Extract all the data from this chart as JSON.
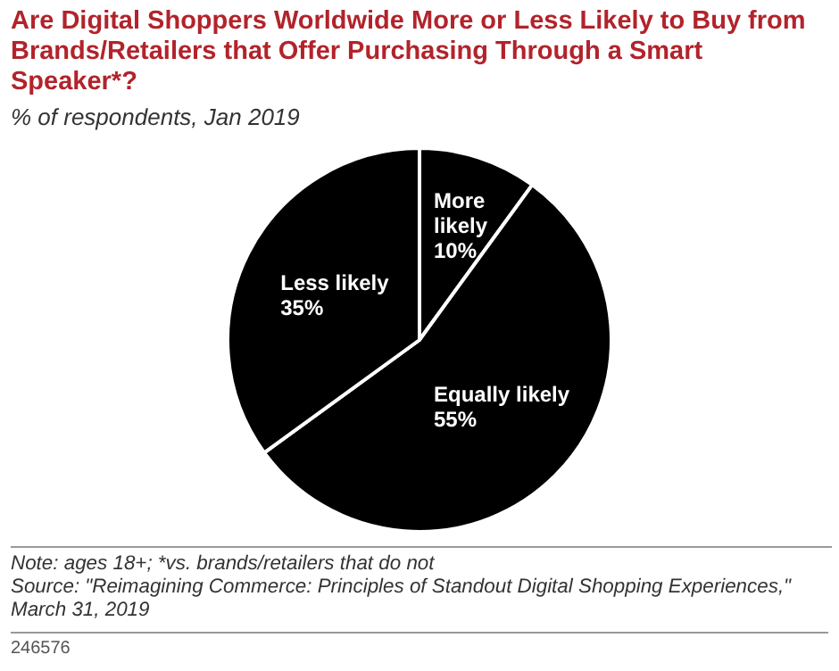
{
  "chart_data": {
    "type": "pie",
    "title": "Are Digital Shoppers Worldwide More or Less Likely to Buy from Brands/Retailers that Offer Purchasing Through a Smart Speaker*?",
    "subtitle": "% of respondents, Jan 2019",
    "categories": [
      "More likely",
      "Equally likely",
      "Less likely"
    ],
    "values": [
      10,
      55,
      35
    ],
    "colors": [
      "#000000",
      "#000000",
      "#000000"
    ],
    "value_labels": [
      "10%",
      "55%",
      "35%"
    ],
    "legend": false,
    "annotations": [
      "Note: ages 18+; *vs. brands/retailers that do not",
      "Source: \"Reimagining Commerce: Principles of Standout Digital Shopping Experiences,\" March 31, 2019",
      "246576"
    ]
  }
}
